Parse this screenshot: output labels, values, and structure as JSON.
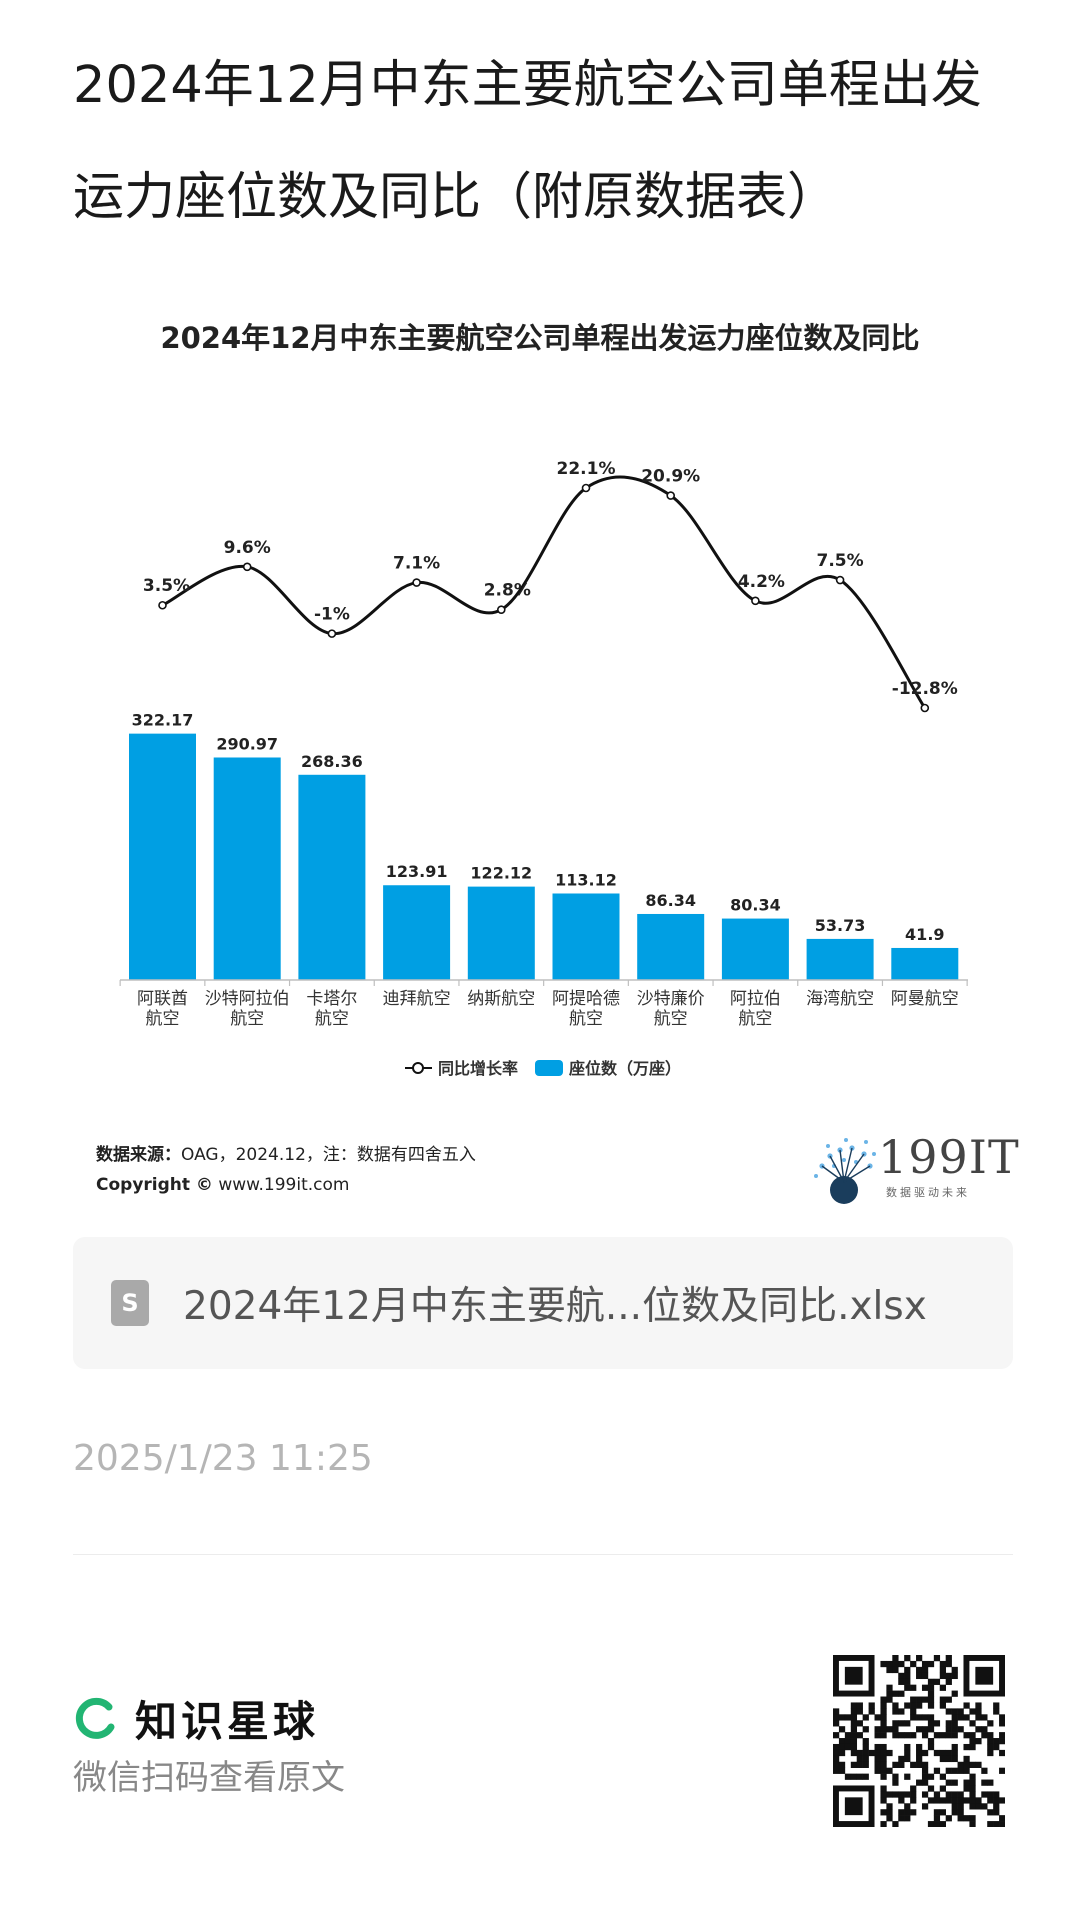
{
  "page": {
    "title": "2024年12月中东主要航空公司单程出发运力座位数及同比（附原数据表）"
  },
  "chart_data": {
    "type": "bar",
    "title": "2024年12月中东主要航空公司单程出发运力座位数及同比",
    "categories": [
      [
        "阿联酋",
        "航空"
      ],
      [
        "沙特阿拉伯",
        "航空"
      ],
      [
        "卡塔尔",
        "航空"
      ],
      [
        "迪拜航空"
      ],
      [
        "纳斯航空"
      ],
      [
        "阿提哈德",
        "航空"
      ],
      [
        "沙特廉价",
        "航空"
      ],
      [
        "阿拉伯",
        "航空"
      ],
      [
        "海湾航空"
      ],
      [
        "阿曼航空"
      ]
    ],
    "series": [
      {
        "name": "座位数（万座）",
        "type": "bar",
        "values": [
          322.17,
          290.97,
          268.36,
          123.91,
          122.12,
          113.12,
          86.34,
          80.34,
          53.73,
          41.9
        ],
        "labels": [
          "322.17",
          "290.97",
          "268.36",
          "123.91",
          "122.12",
          "113.12",
          "86.34",
          "80.34",
          "53.73",
          "41.9"
        ],
        "color": "#009fe3"
      },
      {
        "name": "同比增长率",
        "type": "line",
        "values": [
          3.5,
          9.6,
          -1,
          7.1,
          2.8,
          22.1,
          20.9,
          4.2,
          7.5,
          -12.8
        ],
        "labels": [
          "3.5%",
          "9.6%",
          "-1%",
          "7.1%",
          "2.8%",
          "22.1%",
          "20.9%",
          "4.2%",
          "7.5%",
          "-12.8%"
        ],
        "color": "#111111"
      }
    ],
    "legend": {
      "position": "bottom",
      "line_label": "同比增长率",
      "bar_label": "座位数（万座）"
    },
    "source": {
      "label": "数据来源：",
      "text": "OAG，2024.12，注：数据有四舍五入"
    },
    "copyright": {
      "label": "Copyright ©",
      "text": "www.199it.com"
    },
    "logo": {
      "text": "199IT",
      "tagline": "数据驱动未来"
    }
  },
  "attachment": {
    "file_name": "2024年12月中东主要航...位数及同比.xlsx",
    "icon": "S"
  },
  "timestamp": "2025/1/23 11:25",
  "footer": {
    "brand": "知识星球",
    "hint": "微信扫码查看原文"
  },
  "colors": {
    "bar": "#009fe3",
    "line": "#111111",
    "brand_green": "#22b573"
  }
}
